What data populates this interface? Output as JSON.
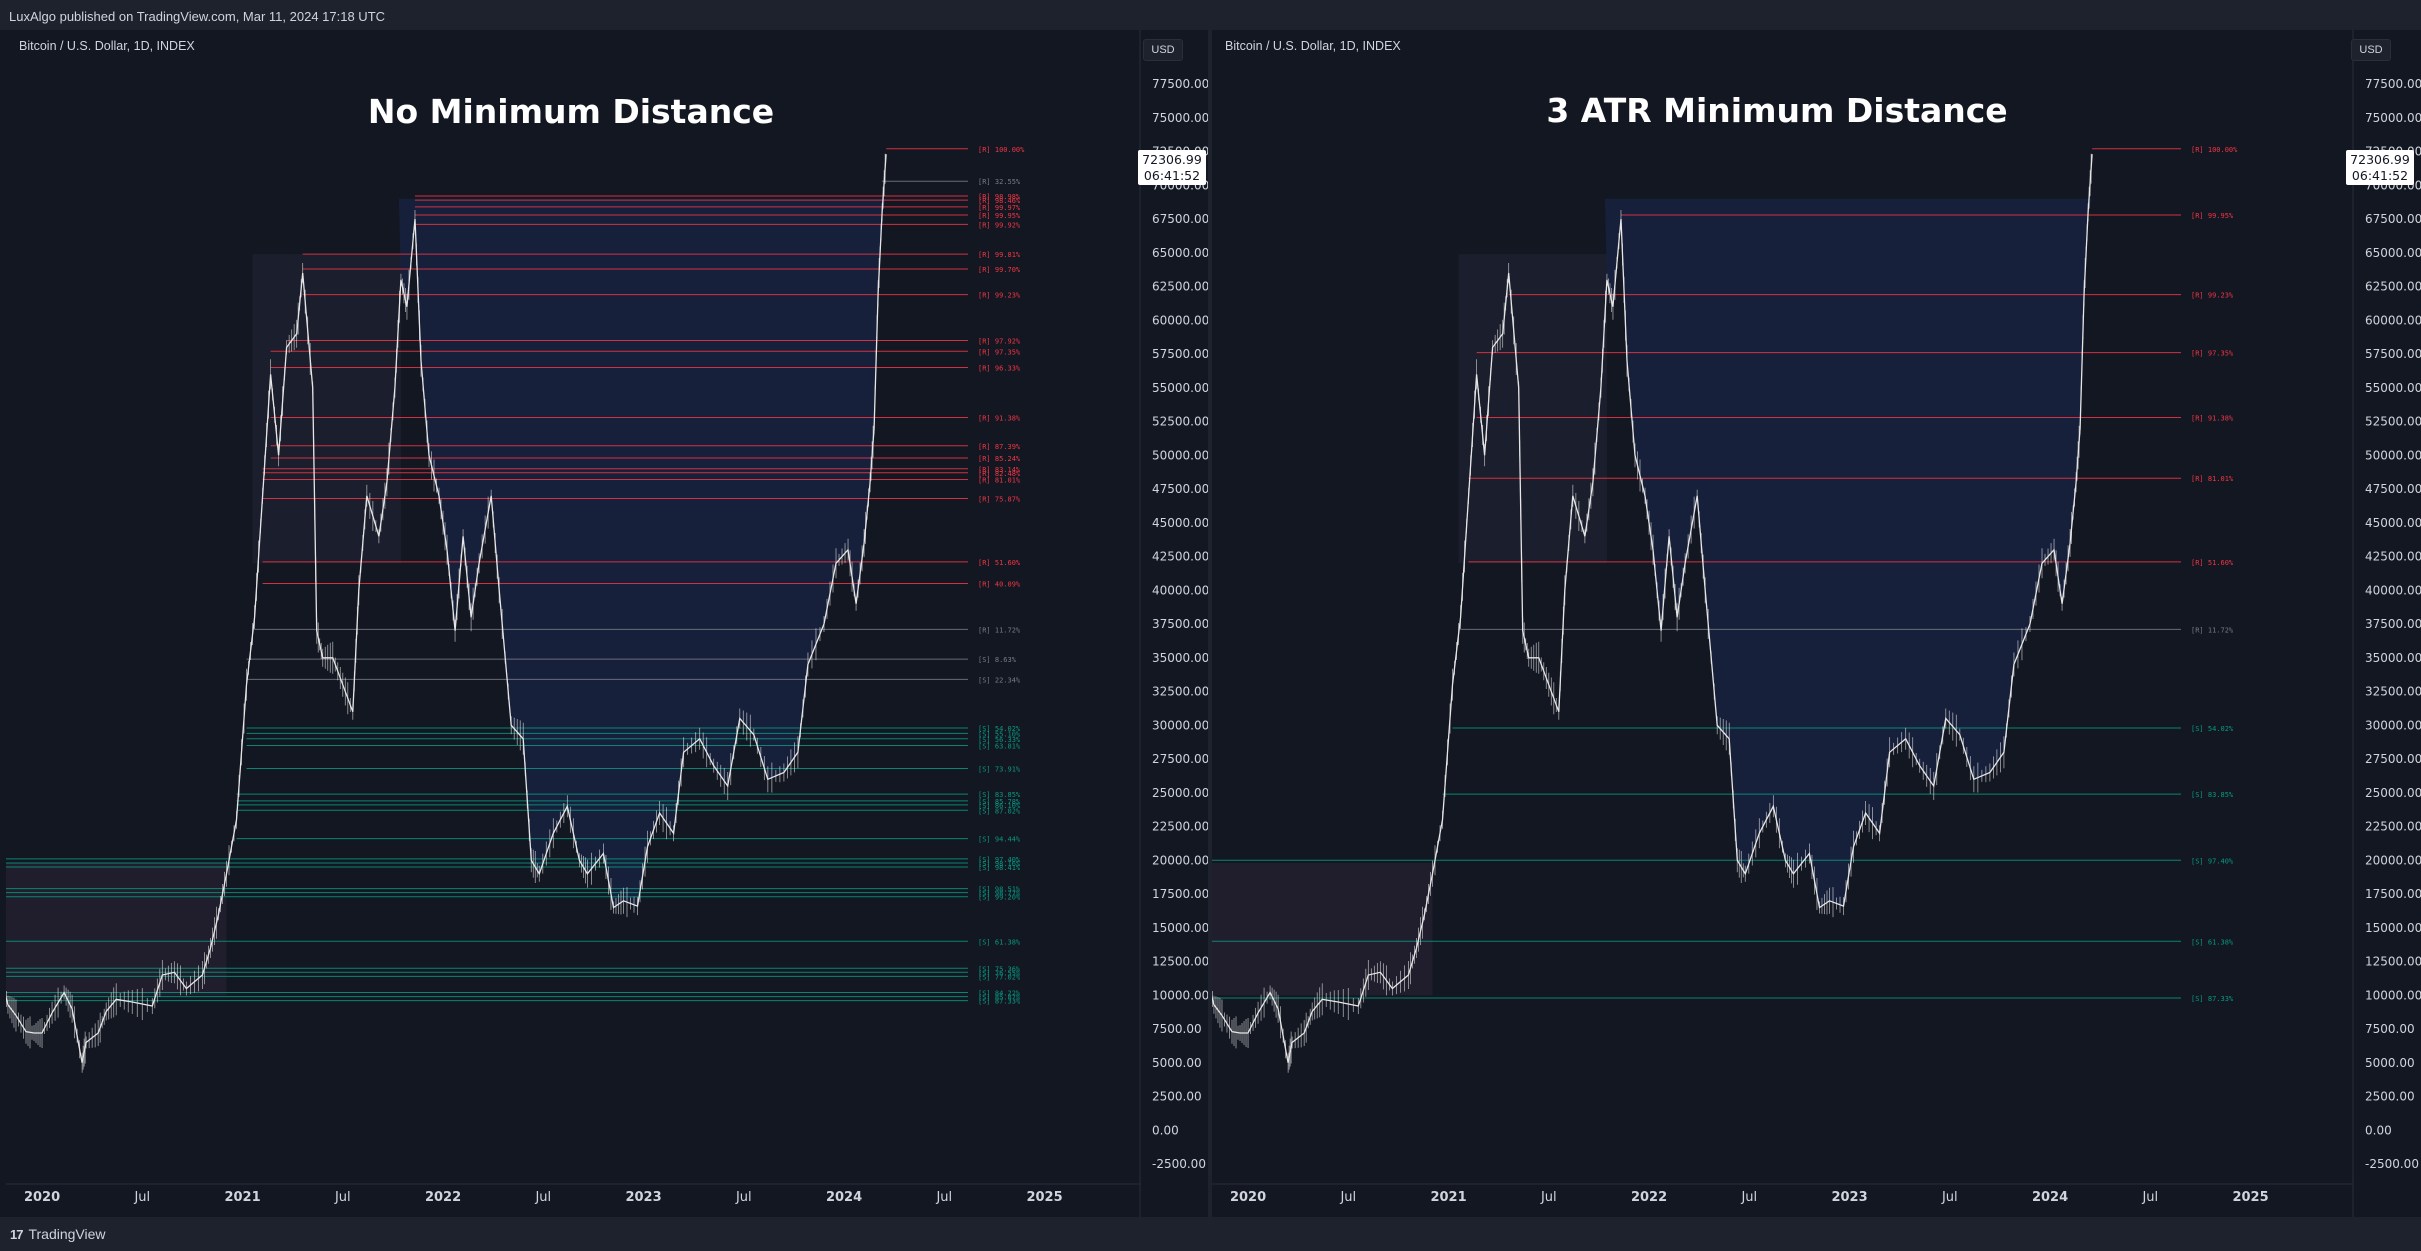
{
  "header": {
    "published": "LuxAlgo published on TradingView.com, Mar 11, 2024 17:18 UTC"
  },
  "footer": {
    "brand": "TradingView",
    "logo": "17"
  },
  "colors": {
    "background": "#131722",
    "bull_level": "#089981",
    "bear_level": "#f23645",
    "neutral_level": "#787b86",
    "fill": "#1d2d5a",
    "axis_text": "#d1d4dc"
  },
  "axis": {
    "y_ticks": [
      "77500.00",
      "75000.00",
      "72500.00",
      "70000.00",
      "67500.00",
      "65000.00",
      "62500.00",
      "60000.00",
      "57500.00",
      "55000.00",
      "52500.00",
      "50000.00",
      "47500.00",
      "45000.00",
      "42500.00",
      "40000.00",
      "37500.00",
      "35000.00",
      "32500.00",
      "30000.00",
      "27500.00",
      "25000.00",
      "22500.00",
      "20000.00",
      "17500.00",
      "15000.00",
      "12500.00",
      "10000.00",
      "7500.00",
      "5000.00",
      "2500.00",
      "0.00",
      "-2500.00"
    ],
    "x_ticks": [
      "2020",
      "Jul",
      "2021",
      "Jul",
      "2022",
      "Jul",
      "2023",
      "Jul",
      "2024",
      "Jul",
      "2025"
    ]
  },
  "panes": [
    {
      "symbol": "Bitcoin / U.S. Dollar, 1D, INDEX",
      "title": "No Minimum Distance",
      "currency": "USD",
      "last_price": "72306.99",
      "countdown": "06:41:52",
      "levels": [
        {
          "price": 72700,
          "label": "[R] 100.00%",
          "kind": "R"
        },
        {
          "price": 70300,
          "label": "[R] 32.55%",
          "kind": "N"
        },
        {
          "price": 69200,
          "label": "[R] 98.98%",
          "kind": "R"
        },
        {
          "price": 68900,
          "label": "[R] 98.46%",
          "kind": "R"
        },
        {
          "price": 68400,
          "label": "[R] 99.97%",
          "kind": "R"
        },
        {
          "price": 67800,
          "label": "[R] 99.95%",
          "kind": "R"
        },
        {
          "price": 67100,
          "label": "[R] 99.92%",
          "kind": "R"
        },
        {
          "price": 64900,
          "label": "[R] 99.81%",
          "kind": "R"
        },
        {
          "price": 63800,
          "label": "[R] 99.70%",
          "kind": "R"
        },
        {
          "price": 61900,
          "label": "[R] 99.23%",
          "kind": "R"
        },
        {
          "price": 58500,
          "label": "[R] 97.92%",
          "kind": "R"
        },
        {
          "price": 57700,
          "label": "[R] 97.35%",
          "kind": "R"
        },
        {
          "price": 56500,
          "label": "[R] 96.33%",
          "kind": "R"
        },
        {
          "price": 52800,
          "label": "[R] 91.38%",
          "kind": "R"
        },
        {
          "price": 50700,
          "label": "[R] 87.39%",
          "kind": "R"
        },
        {
          "price": 49800,
          "label": "[R] 85.24%",
          "kind": "R"
        },
        {
          "price": 49000,
          "label": "[R] 83.14%",
          "kind": "R"
        },
        {
          "price": 48700,
          "label": "[R] 82.48%",
          "kind": "R"
        },
        {
          "price": 48200,
          "label": "[R] 81.01%",
          "kind": "R"
        },
        {
          "price": 46800,
          "label": "[R] 75.87%",
          "kind": "R"
        },
        {
          "price": 42100,
          "label": "[R] 51.60%",
          "kind": "R"
        },
        {
          "price": 40500,
          "label": "[R] 40.09%",
          "kind": "R"
        },
        {
          "price": 37100,
          "label": "[R] 11.72%",
          "kind": "N"
        },
        {
          "price": 34900,
          "label": "[S] 8.63%",
          "kind": "N"
        },
        {
          "price": 33400,
          "label": "[S] 22.34%",
          "kind": "N"
        },
        {
          "price": 29800,
          "label": "[S] 54.02%",
          "kind": "S"
        },
        {
          "price": 29400,
          "label": "[S] 55.10%",
          "kind": "S"
        },
        {
          "price": 29000,
          "label": "[S] 56.33%",
          "kind": "S"
        },
        {
          "price": 28500,
          "label": "[S] 63.81%",
          "kind": "S"
        },
        {
          "price": 26800,
          "label": "[S] 73.91%",
          "kind": "S"
        },
        {
          "price": 24900,
          "label": "[S] 83.85%",
          "kind": "S"
        },
        {
          "price": 24400,
          "label": "[S] 85.78%",
          "kind": "S"
        },
        {
          "price": 24100,
          "label": "[S] 86.10%",
          "kind": "S"
        },
        {
          "price": 23700,
          "label": "[S] 87.02%",
          "kind": "S"
        },
        {
          "price": 21600,
          "label": "[S] 94.44%",
          "kind": "S"
        },
        {
          "price": 20100,
          "label": "[S] 97.40%",
          "kind": "S"
        },
        {
          "price": 19800,
          "label": "[S] 98.16%",
          "kind": "S"
        },
        {
          "price": 19500,
          "label": "[S] 98.41%",
          "kind": "S"
        },
        {
          "price": 17900,
          "label": "[S] 98.51%",
          "kind": "S"
        },
        {
          "price": 17600,
          "label": "[S] 98.77%",
          "kind": "S"
        },
        {
          "price": 17300,
          "label": "[S] 99.20%",
          "kind": "S"
        },
        {
          "price": 14000,
          "label": "[S] 61.38%",
          "kind": "S"
        },
        {
          "price": 12000,
          "label": "[S] 75.36%",
          "kind": "S"
        },
        {
          "price": 11700,
          "label": "[S] 76.55%",
          "kind": "S"
        },
        {
          "price": 11400,
          "label": "[S] 77.02%",
          "kind": "S"
        },
        {
          "price": 10200,
          "label": "[S] 84.22%",
          "kind": "S"
        },
        {
          "price": 9900,
          "label": "[S] 85.87%",
          "kind": "S"
        },
        {
          "price": 9600,
          "label": "[S] 87.33%",
          "kind": "S"
        }
      ]
    },
    {
      "symbol": "Bitcoin / U.S. Dollar, 1D, INDEX",
      "title": "3 ATR Minimum Distance",
      "currency": "USD",
      "last_price": "72306.99",
      "countdown": "06:41:52",
      "levels": [
        {
          "price": 72700,
          "label": "[R] 100.00%",
          "kind": "R"
        },
        {
          "price": 67800,
          "label": "[R] 99.95%",
          "kind": "R"
        },
        {
          "price": 61900,
          "label": "[R] 99.23%",
          "kind": "R"
        },
        {
          "price": 57600,
          "label": "[R] 97.35%",
          "kind": "R"
        },
        {
          "price": 52800,
          "label": "[R] 91.38%",
          "kind": "R"
        },
        {
          "price": 48300,
          "label": "[R] 81.01%",
          "kind": "R"
        },
        {
          "price": 42100,
          "label": "[R] 51.60%",
          "kind": "R"
        },
        {
          "price": 37100,
          "label": "[R] 11.72%",
          "kind": "N"
        },
        {
          "price": 29800,
          "label": "[S] 54.02%",
          "kind": "S"
        },
        {
          "price": 24900,
          "label": "[S] 83.85%",
          "kind": "S"
        },
        {
          "price": 20000,
          "label": "[S] 97.40%",
          "kind": "S"
        },
        {
          "price": 14000,
          "label": "[S] 61.38%",
          "kind": "S"
        },
        {
          "price": 9800,
          "label": "[S] 87.33%",
          "kind": "S"
        }
      ]
    }
  ]
}
